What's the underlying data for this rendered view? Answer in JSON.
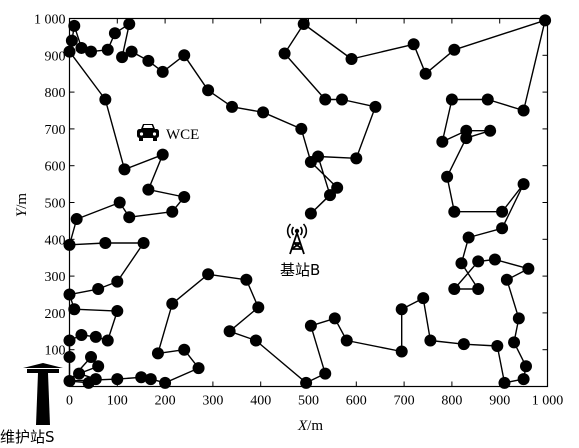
{
  "chart_data": {
    "type": "line",
    "xlabel": {
      "italic": "X",
      "unit": "/m"
    },
    "ylabel": {
      "italic": "Y",
      "unit": "/m"
    },
    "xlim": [
      0,
      1000
    ],
    "ylim": [
      0,
      1000
    ],
    "x_ticks": [
      {
        "value": 0,
        "label": "0"
      },
      {
        "value": 100,
        "label": "100"
      },
      {
        "value": 200,
        "label": "200"
      },
      {
        "value": 300,
        "label": "300"
      },
      {
        "value": 400,
        "label": "400"
      },
      {
        "value": 500,
        "label": "500"
      },
      {
        "value": 600,
        "label": "600"
      },
      {
        "value": 700,
        "label": "700"
      },
      {
        "value": 800,
        "label": "800"
      },
      {
        "value": 900,
        "label": "900"
      },
      {
        "value": 1000,
        "label": "1 000"
      }
    ],
    "y_ticks": [
      {
        "value": 100,
        "label": "100"
      },
      {
        "value": 200,
        "label": "200"
      },
      {
        "value": 300,
        "label": "300"
      },
      {
        "value": 400,
        "label": "400"
      },
      {
        "value": 500,
        "label": "500"
      },
      {
        "value": 600,
        "label": "600"
      },
      {
        "value": 700,
        "label": "700"
      },
      {
        "value": 800,
        "label": "800"
      },
      {
        "value": 900,
        "label": "900"
      },
      {
        "value": 1000,
        "label": "1 000"
      }
    ],
    "grid": false,
    "path_color": "#000000",
    "node_color": "#000000",
    "route": [
      [
        0,
        15
      ],
      [
        45,
        80
      ],
      [
        60,
        55
      ],
      [
        20,
        35
      ],
      [
        55,
        20
      ],
      [
        40,
        10
      ],
      [
        0,
        15
      ],
      [
        100,
        20
      ],
      [
        150,
        25
      ],
      [
        170,
        20
      ],
      [
        200,
        10
      ],
      [
        270,
        50
      ],
      [
        240,
        100
      ],
      [
        185,
        90
      ],
      [
        215,
        225
      ],
      [
        290,
        305
      ],
      [
        370,
        290
      ],
      [
        395,
        215
      ],
      [
        335,
        150
      ],
      [
        390,
        125
      ],
      [
        495,
        10
      ],
      [
        535,
        35
      ],
      [
        505,
        165
      ],
      [
        555,
        185
      ],
      [
        580,
        125
      ],
      [
        695,
        95
      ],
      [
        695,
        210
      ],
      [
        740,
        240
      ],
      [
        755,
        125
      ],
      [
        825,
        115
      ],
      [
        895,
        110
      ],
      [
        910,
        10
      ],
      [
        950,
        20
      ],
      [
        955,
        55
      ],
      [
        930,
        120
      ],
      [
        940,
        185
      ],
      [
        915,
        290
      ],
      [
        960,
        320
      ],
      [
        890,
        345
      ],
      [
        855,
        340
      ],
      [
        805,
        265
      ],
      [
        855,
        265
      ],
      [
        820,
        335
      ],
      [
        835,
        405
      ],
      [
        905,
        430
      ],
      [
        950,
        550
      ],
      [
        905,
        475
      ],
      [
        805,
        475
      ],
      [
        790,
        570
      ],
      [
        830,
        675
      ],
      [
        880,
        695
      ],
      [
        830,
        695
      ],
      [
        780,
        665
      ],
      [
        800,
        780
      ],
      [
        875,
        780
      ],
      [
        950,
        750
      ],
      [
        995,
        995
      ],
      [
        805,
        915
      ],
      [
        745,
        850
      ],
      [
        720,
        930
      ],
      [
        590,
        890
      ],
      [
        490,
        985
      ],
      [
        450,
        905
      ],
      [
        535,
        780
      ],
      [
        570,
        780
      ],
      [
        640,
        760
      ],
      [
        600,
        620
      ],
      [
        520,
        625
      ],
      [
        545,
        520
      ],
      [
        505,
        470
      ],
      [
        560,
        540
      ],
      [
        505,
        610
      ],
      [
        485,
        700
      ],
      [
        405,
        745
      ],
      [
        340,
        760
      ],
      [
        290,
        805
      ],
      [
        240,
        900
      ],
      [
        195,
        855
      ],
      [
        165,
        885
      ],
      [
        130,
        910
      ],
      [
        110,
        895
      ],
      [
        125,
        985
      ],
      [
        95,
        960
      ],
      [
        80,
        915
      ],
      [
        45,
        910
      ],
      [
        25,
        920
      ],
      [
        10,
        980
      ],
      [
        5,
        940
      ],
      [
        0,
        910
      ],
      [
        75,
        780
      ],
      [
        115,
        590
      ],
      [
        195,
        630
      ],
      [
        165,
        535
      ],
      [
        240,
        515
      ],
      [
        215,
        475
      ],
      [
        125,
        460
      ],
      [
        105,
        500
      ],
      [
        15,
        455
      ],
      [
        0,
        385
      ],
      [
        75,
        390
      ],
      [
        155,
        390
      ],
      [
        100,
        285
      ],
      [
        60,
        265
      ],
      [
        0,
        250
      ],
      [
        10,
        210
      ],
      [
        100,
        205
      ],
      [
        80,
        125
      ],
      [
        55,
        135
      ],
      [
        25,
        140
      ],
      [
        0,
        125
      ],
      [
        0,
        80
      ],
      [
        0,
        15
      ]
    ],
    "annotations": {
      "wce": {
        "x": 160,
        "y": 690,
        "label": "WCE"
      },
      "base_station": {
        "x": 480,
        "y": 420,
        "label": "基站B"
      },
      "maintenance": {
        "x": -30,
        "y": 15,
        "label": "维护站S"
      }
    }
  }
}
